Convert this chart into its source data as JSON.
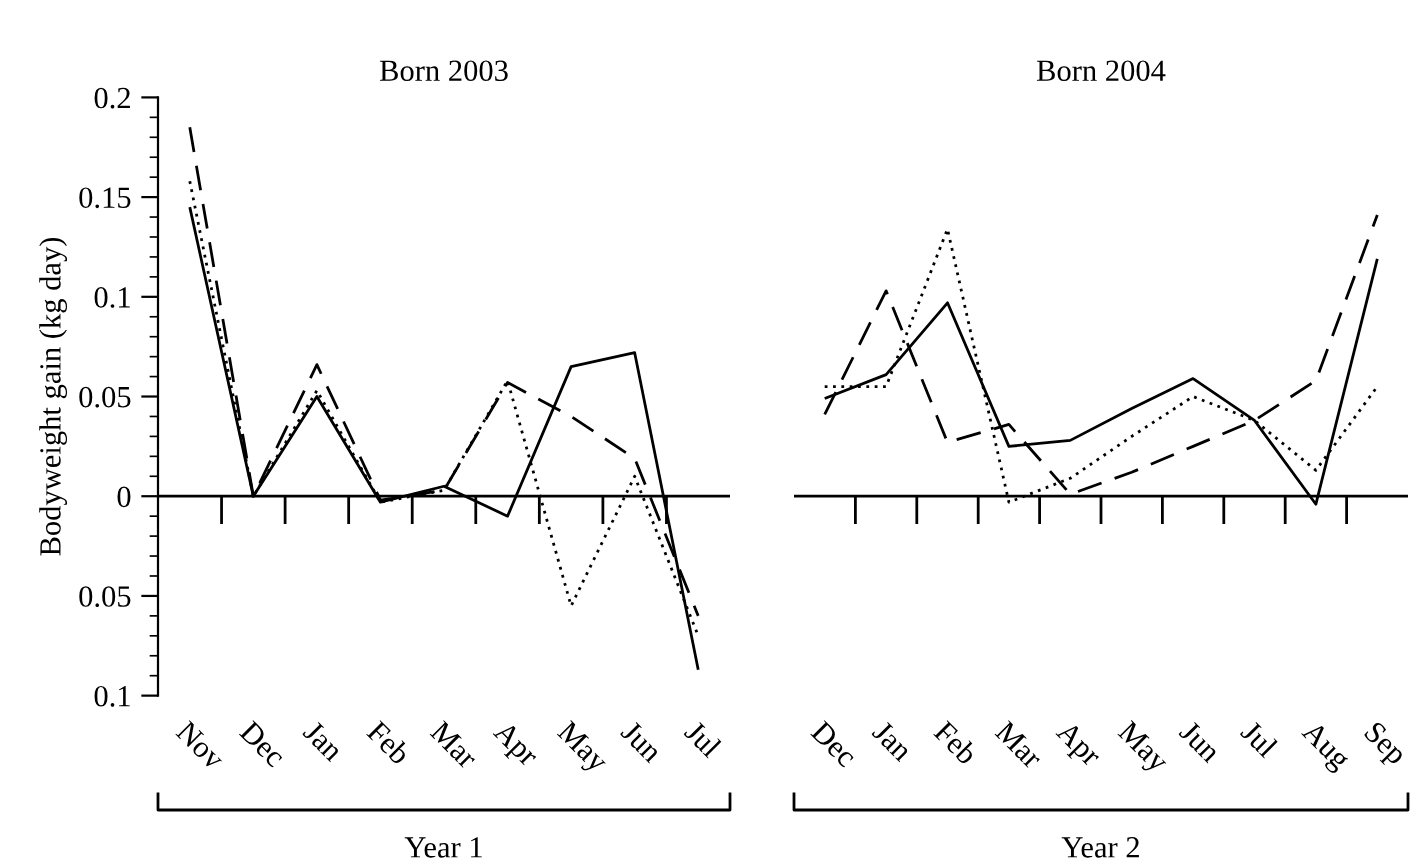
{
  "chart_data": [
    {
      "type": "line",
      "title": "Born 2003",
      "ylabel": "Bodyweight gain (kg day)",
      "categories": [
        "Nov",
        "Dec",
        "Jan",
        "Feb",
        "Mar",
        "Apr",
        "May",
        "Jun",
        "Jul"
      ],
      "series": [
        {
          "color": "#000000",
          "line_style": "solid",
          "values": [
            0.145,
            0,
            0.05,
            -0.003,
            0.005,
            -0.01,
            0.065,
            0.072,
            -0.087
          ]
        },
        {
          "color": "#000000",
          "line_style": "dashed",
          "values": [
            0.185,
            0,
            0.066,
            -0.002,
            0.003,
            0.057,
            0.04,
            0.019,
            -0.06
          ]
        },
        {
          "color": "#000000",
          "line_style": "dotted",
          "values": [
            0.158,
            0,
            0.053,
            -0.003,
            0.003,
            0.058,
            -0.055,
            0.01,
            -0.07
          ]
        }
      ],
      "ylim": [
        -0.1,
        0.2
      ],
      "yticks": [
        {
          "value": -0.1,
          "label": "0.1"
        },
        {
          "value": -0.05,
          "label": "0.05"
        },
        0,
        0.05,
        0.1,
        0.15,
        0.2
      ],
      "ref_lines": [
        {
          "axis": "y",
          "value": 0,
          "color": "#000000"
        }
      ],
      "annotations": [
        "Year 1"
      ]
    },
    {
      "type": "line",
      "title": "Born 2004",
      "categories": [
        "Dec",
        "Jan",
        "Feb",
        "Mar",
        "Apr",
        "May",
        "Jun",
        "Jul",
        "Aug",
        "Sep"
      ],
      "series": [
        {
          "color": "#000000",
          "line_style": "solid",
          "values": [
            0.049,
            0.061,
            0.097,
            0.025,
            0.028,
            0.044,
            0.059,
            0.038,
            -0.004,
            0.119
          ]
        },
        {
          "color": "#000000",
          "line_style": "dashed",
          "values": [
            0.041,
            0.103,
            0.027,
            0.036,
            0.001,
            0.012,
            0.025,
            0.038,
            0.058,
            0.141
          ]
        },
        {
          "color": "#000000",
          "line_style": "dotted",
          "values": [
            0.055,
            0.055,
            0.134,
            -0.003,
            0.009,
            0.03,
            0.05,
            0.038,
            0.013,
            0.055
          ]
        }
      ],
      "ylim": [
        -0.1,
        0.2
      ],
      "tick_labels": "x",
      "ref_lines": [
        {
          "axis": "y",
          "value": 0,
          "color": "#000000"
        }
      ],
      "annotations": [
        "Year 2"
      ]
    }
  ]
}
